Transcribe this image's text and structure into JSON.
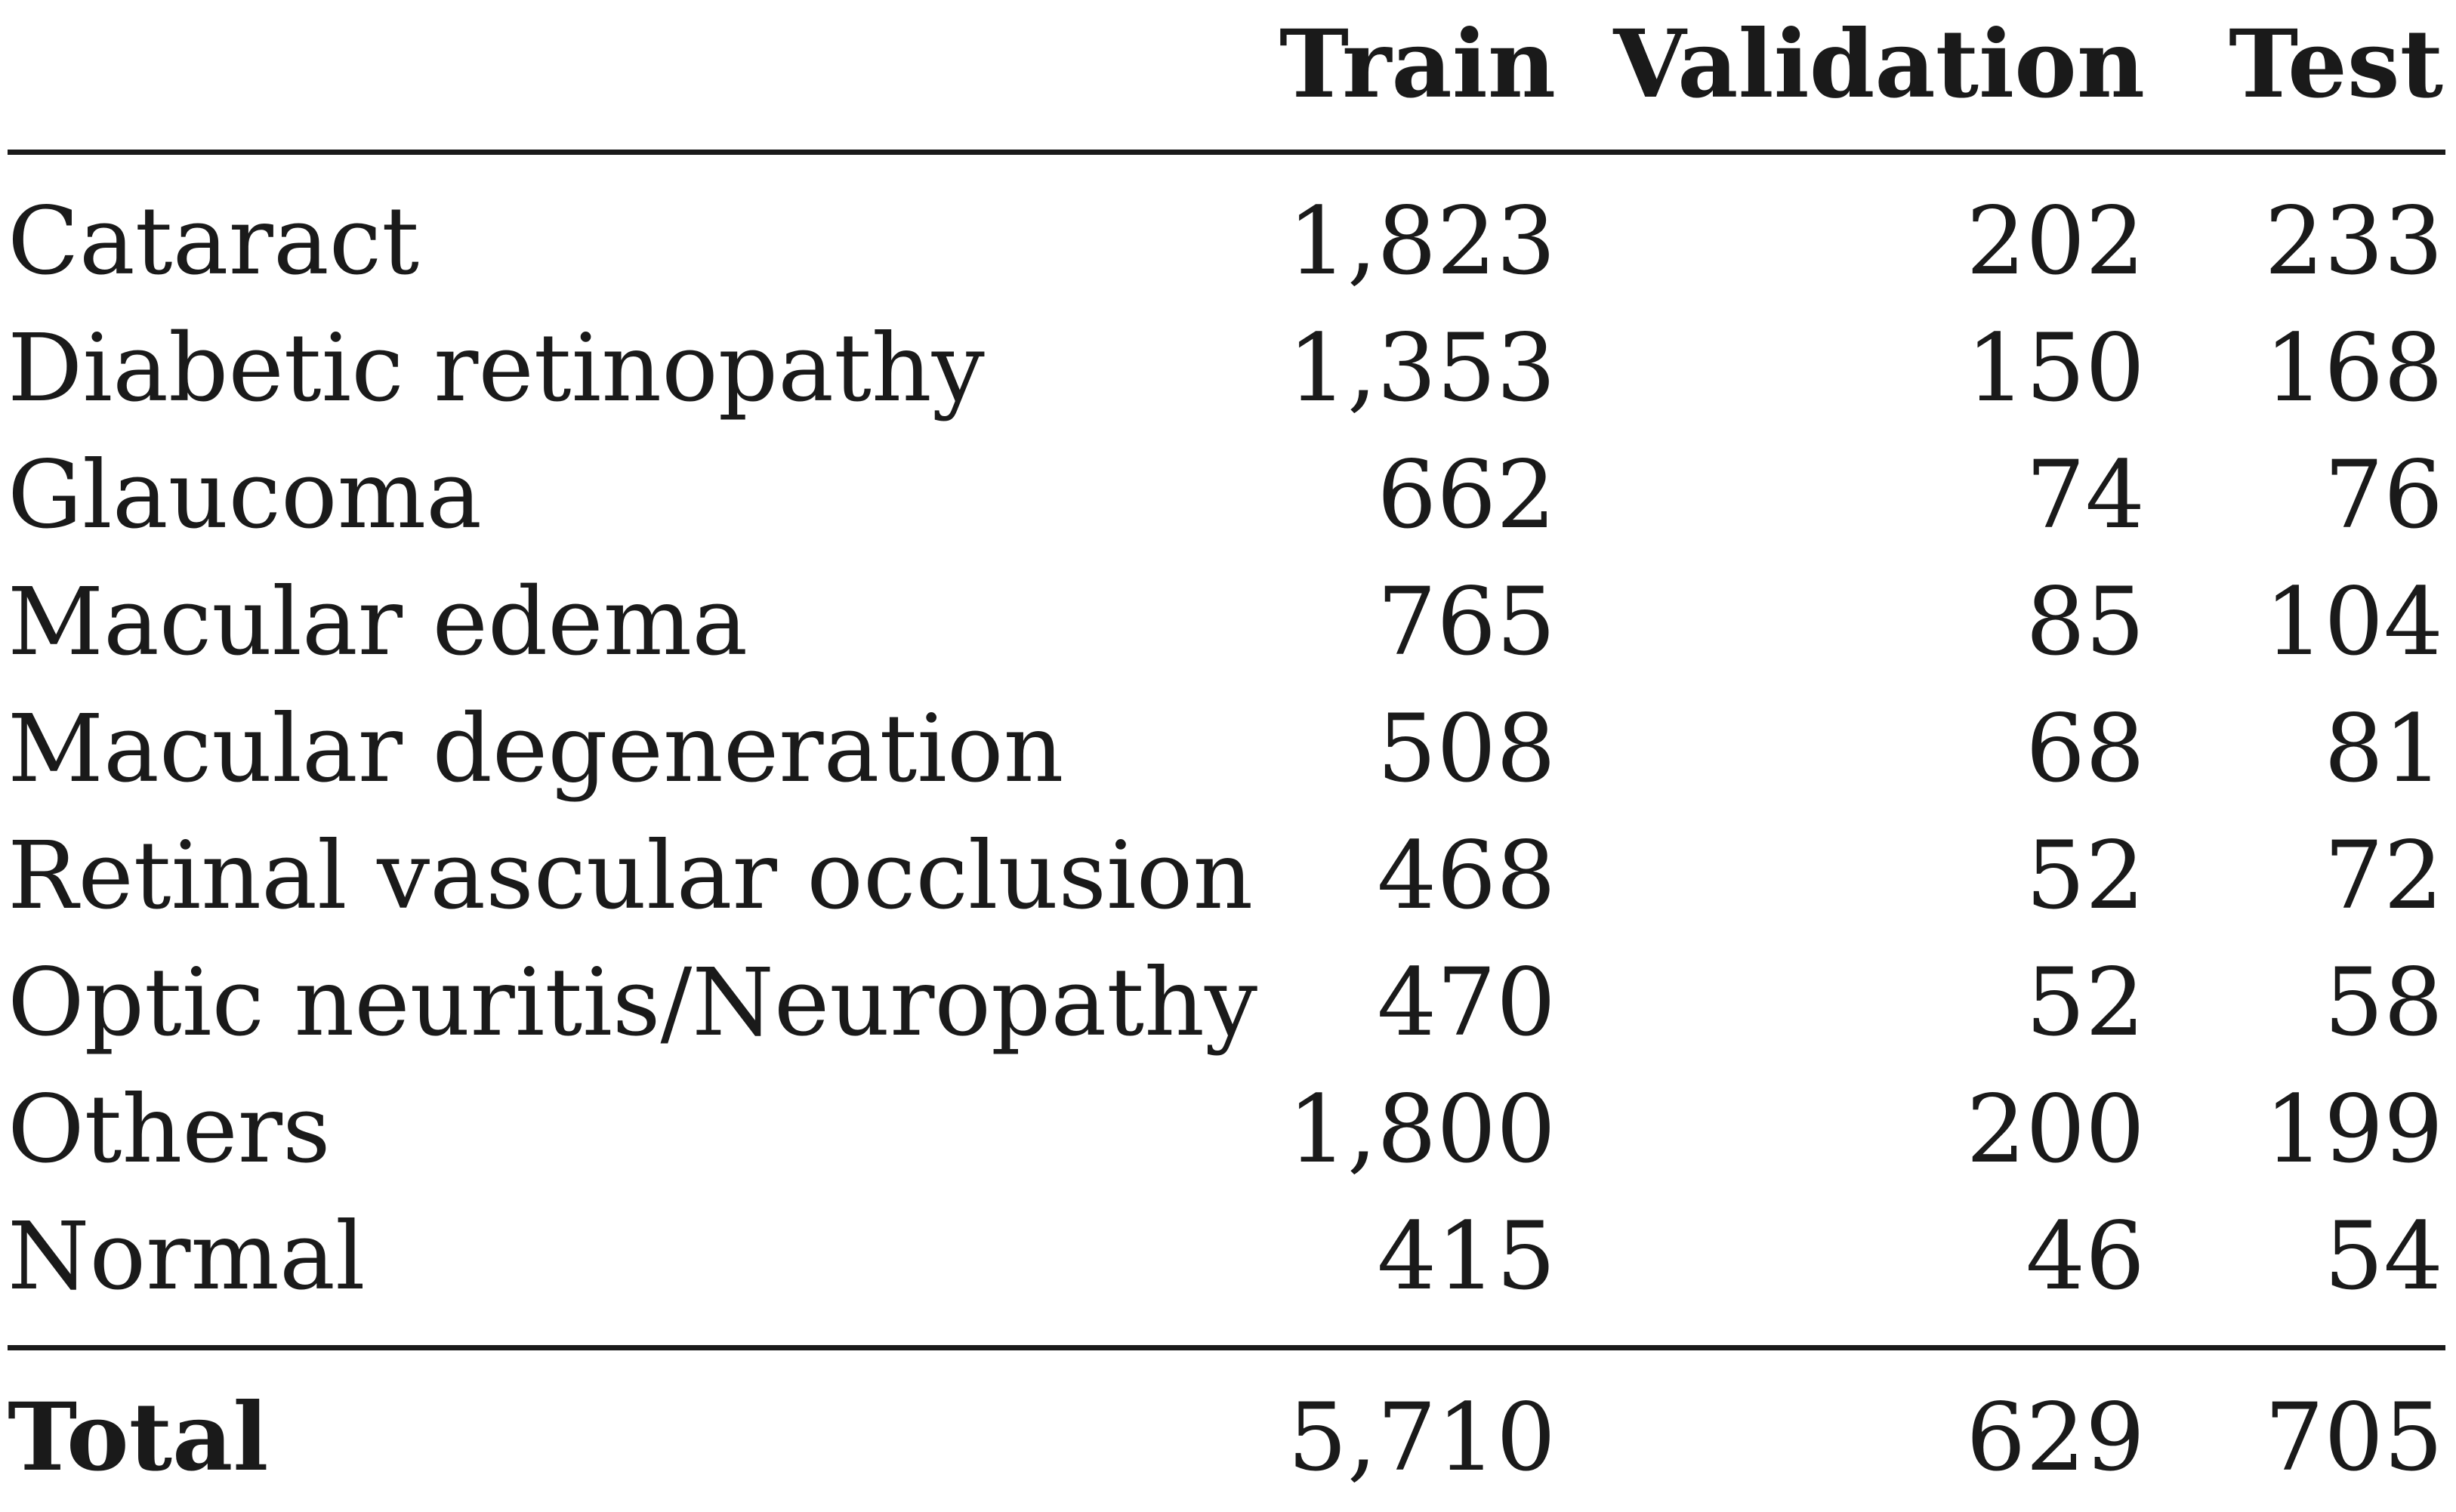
{
  "table": {
    "headers": [
      "",
      "Train",
      "Validation",
      "Test"
    ],
    "rows": [
      {
        "label": "Cataract",
        "train": "1,823",
        "validation": "202",
        "test": "233"
      },
      {
        "label": "Diabetic retinopathy",
        "train": "1,353",
        "validation": "150",
        "test": "168"
      },
      {
        "label": "Glaucoma",
        "train": "662",
        "validation": "74",
        "test": "76"
      },
      {
        "label": "Macular edema",
        "train": "765",
        "validation": "85",
        "test": "104"
      },
      {
        "label": "Macular degeneration",
        "train": "508",
        "validation": "68",
        "test": "81"
      },
      {
        "label": "Retinal vascular occlusion",
        "train": "468",
        "validation": "52",
        "test": "72"
      },
      {
        "label": "Optic neuritis/Neuropathy",
        "train": "470",
        "validation": "52",
        "test": "58"
      },
      {
        "label": "Others",
        "train": "1,800",
        "validation": "200",
        "test": "199"
      },
      {
        "label": "Normal",
        "train": "415",
        "validation": "46",
        "test": "54"
      }
    ],
    "total": {
      "label": "Total",
      "train": "5,710",
      "validation": "629",
      "test": "705"
    }
  }
}
